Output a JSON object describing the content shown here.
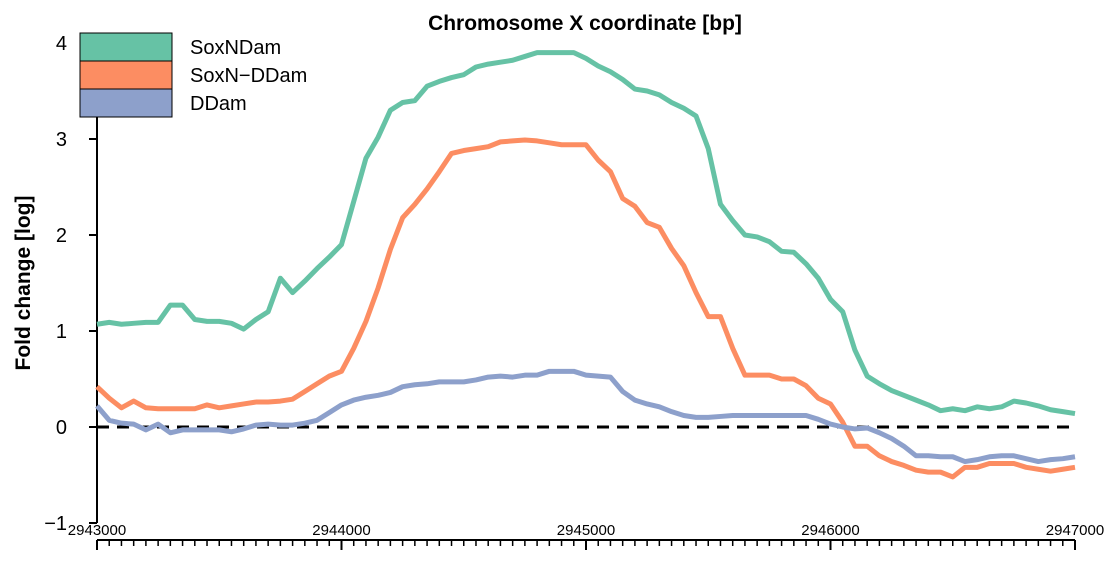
{
  "chart_data": {
    "type": "line",
    "title": "Chromosome X coordinate [bp]",
    "y_label": "Fold change [log]",
    "x": [
      2943000,
      2943050,
      2943100,
      2943150,
      2943200,
      2943250,
      2943300,
      2943350,
      2943400,
      2943450,
      2943500,
      2943550,
      2943600,
      2943650,
      2943700,
      2943750,
      2943800,
      2943850,
      2943900,
      2943950,
      2944000,
      2944050,
      2944100,
      2944150,
      2944200,
      2944250,
      2944300,
      2944350,
      2944400,
      2944450,
      2944500,
      2944550,
      2944600,
      2944650,
      2944700,
      2944750,
      2944800,
      2944850,
      2944900,
      2944950,
      2945000,
      2945050,
      2945100,
      2945150,
      2945200,
      2945250,
      2945300,
      2945350,
      2945400,
      2945450,
      2945500,
      2945550,
      2945600,
      2945650,
      2945700,
      2945750,
      2945800,
      2945850,
      2945900,
      2945950,
      2946000,
      2946050,
      2946100,
      2946150,
      2946200,
      2946250,
      2946300,
      2946350,
      2946400,
      2946450,
      2946500,
      2946550,
      2946600,
      2946650,
      2946700,
      2946750,
      2946800,
      2946850,
      2946900,
      2946950,
      2947000
    ],
    "series": [
      {
        "name": "SoxNDam",
        "color": "#66C2A5",
        "values": [
          1.07,
          1.09,
          1.07,
          1.08,
          1.09,
          1.09,
          1.27,
          1.27,
          1.12,
          1.1,
          1.1,
          1.08,
          1.02,
          1.12,
          1.2,
          1.55,
          1.4,
          1.52,
          1.65,
          1.77,
          1.9,
          2.35,
          2.8,
          3.02,
          3.3,
          3.38,
          3.4,
          3.55,
          3.6,
          3.64,
          3.67,
          3.75,
          3.78,
          3.8,
          3.82,
          3.86,
          3.9,
          3.9,
          3.9,
          3.9,
          3.84,
          3.76,
          3.7,
          3.62,
          3.52,
          3.5,
          3.46,
          3.38,
          3.32,
          3.24,
          2.9,
          2.32,
          2.15,
          2.0,
          1.98,
          1.93,
          1.83,
          1.82,
          1.7,
          1.55,
          1.33,
          1.2,
          0.8,
          0.53,
          0.45,
          0.38,
          0.33,
          0.28,
          0.23,
          0.17,
          0.19,
          0.17,
          0.21,
          0.19,
          0.21,
          0.27,
          0.25,
          0.22,
          0.18,
          0.16,
          0.14
        ]
      },
      {
        "name": "SoxN−DDam",
        "color": "#FC8D62",
        "values": [
          0.42,
          0.3,
          0.2,
          0.27,
          0.2,
          0.19,
          0.19,
          0.19,
          0.19,
          0.23,
          0.2,
          0.22,
          0.24,
          0.26,
          0.26,
          0.27,
          0.29,
          0.37,
          0.45,
          0.53,
          0.58,
          0.82,
          1.1,
          1.45,
          1.85,
          2.18,
          2.32,
          2.48,
          2.66,
          2.85,
          2.88,
          2.9,
          2.92,
          2.97,
          2.98,
          2.99,
          2.98,
          2.96,
          2.94,
          2.94,
          2.94,
          2.78,
          2.66,
          2.38,
          2.3,
          2.13,
          2.08,
          1.86,
          1.68,
          1.4,
          1.15,
          1.15,
          0.82,
          0.54,
          0.54,
          0.54,
          0.5,
          0.5,
          0.43,
          0.3,
          0.24,
          0.05,
          -0.2,
          -0.2,
          -0.3,
          -0.36,
          -0.4,
          -0.45,
          -0.47,
          -0.47,
          -0.52,
          -0.42,
          -0.42,
          -0.38,
          -0.38,
          -0.38,
          -0.42,
          -0.44,
          -0.46,
          -0.44,
          -0.42
        ]
      },
      {
        "name": "DDam",
        "color": "#8DA0CB",
        "values": [
          0.22,
          0.07,
          0.04,
          0.03,
          -0.03,
          0.03,
          -0.06,
          -0.03,
          -0.03,
          -0.03,
          -0.03,
          -0.05,
          -0.02,
          0.02,
          0.03,
          0.02,
          0.02,
          0.04,
          0.07,
          0.15,
          0.23,
          0.28,
          0.31,
          0.33,
          0.36,
          0.42,
          0.44,
          0.45,
          0.47,
          0.47,
          0.47,
          0.49,
          0.52,
          0.53,
          0.52,
          0.54,
          0.54,
          0.58,
          0.58,
          0.58,
          0.54,
          0.53,
          0.52,
          0.37,
          0.28,
          0.24,
          0.21,
          0.16,
          0.12,
          0.1,
          0.1,
          0.11,
          0.12,
          0.12,
          0.12,
          0.12,
          0.12,
          0.12,
          0.12,
          0.08,
          0.03,
          0.0,
          -0.02,
          -0.01,
          -0.06,
          -0.12,
          -0.2,
          -0.3,
          -0.3,
          -0.31,
          -0.31,
          -0.36,
          -0.34,
          -0.31,
          -0.3,
          -0.3,
          -0.33,
          -0.36,
          -0.34,
          -0.33,
          -0.31
        ]
      }
    ],
    "xlim": [
      2943000,
      2947000
    ],
    "xticks": [
      2943000,
      2944000,
      2945000,
      2946000,
      2947000
    ],
    "xminorticks": [
      2943000,
      2943050,
      2943100,
      2943150,
      2943200,
      2943250,
      2943300,
      2943350,
      2943400,
      2943450,
      2943500,
      2943550,
      2943600,
      2943650,
      2943700,
      2943750,
      2943800,
      2943850,
      2943900,
      2943950,
      2944000,
      2944050,
      2944100,
      2944150,
      2944200,
      2944250,
      2944300,
      2944350,
      2944400,
      2944450,
      2944500,
      2944550,
      2944600,
      2944650,
      2944700,
      2944750,
      2944800,
      2944850,
      2944900,
      2944950,
      2945000,
      2945050,
      2945100,
      2945150,
      2945200,
      2945250,
      2945300,
      2945350,
      2945400,
      2945450,
      2945500,
      2945550,
      2945600,
      2945650,
      2945700,
      2945750,
      2945800,
      2945850,
      2945900,
      2945950,
      2946000,
      2946050,
      2946100,
      2946150,
      2946200,
      2946250,
      2946300,
      2946350,
      2946400,
      2946450,
      2946500,
      2946550,
      2946600,
      2946650,
      2946700,
      2946750,
      2946800,
      2946850,
      2946900,
      2946950,
      2947000
    ],
    "ylim": [
      -1,
      4
    ],
    "yticks": [
      {
        "value": -1,
        "label": "−1"
      },
      0,
      1,
      2,
      3,
      4
    ],
    "reference_line": 0,
    "legend": "top-left"
  }
}
